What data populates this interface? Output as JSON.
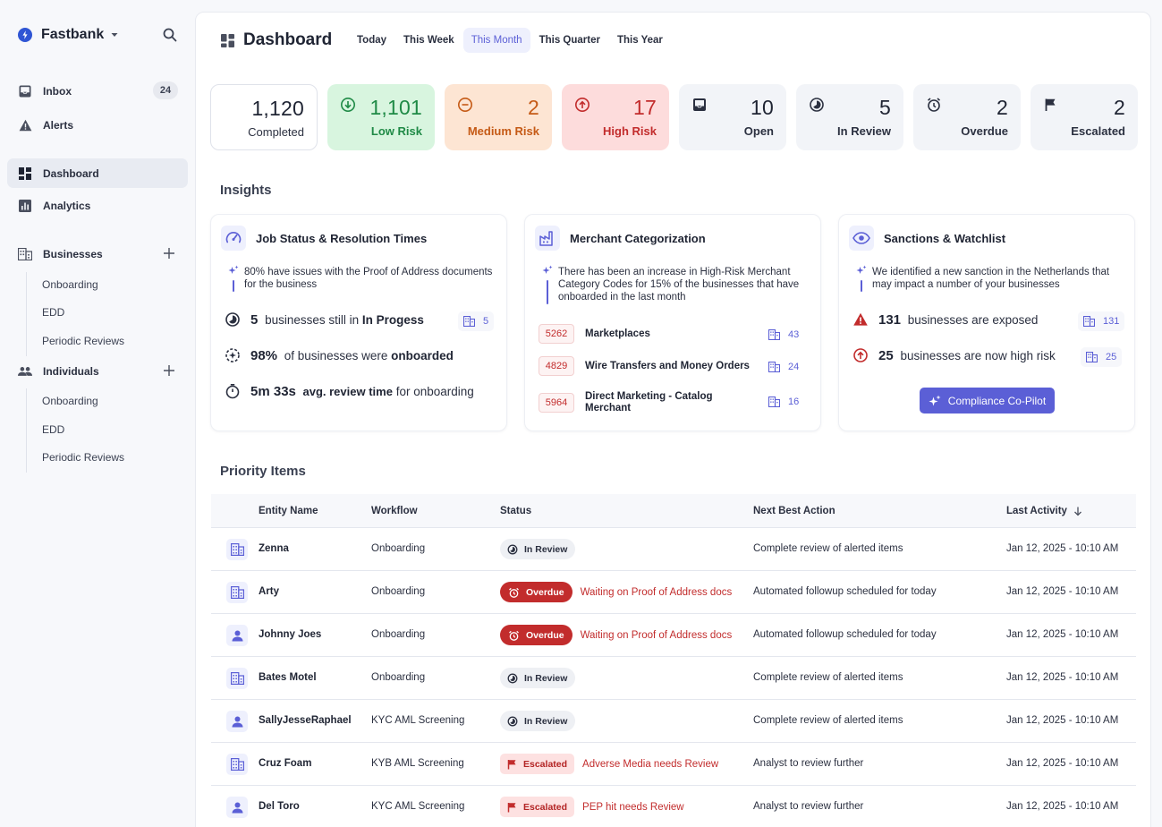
{
  "sidebar": {
    "brand": "Fastbank",
    "top_items": [
      {
        "label": "Inbox",
        "badge": "24"
      },
      {
        "label": "Alerts"
      }
    ],
    "main_items": [
      {
        "label": "Dashboard"
      },
      {
        "label": "Analytics"
      }
    ],
    "groups": [
      {
        "label": "Businesses",
        "children": [
          "Onboarding",
          "EDD",
          "Periodic Reviews"
        ]
      },
      {
        "label": "Individuals",
        "children": [
          "Onboarding",
          "EDD",
          "Periodic Reviews"
        ]
      }
    ]
  },
  "header": {
    "title": "Dashboard",
    "tabs": [
      "Today",
      "This Week",
      "This Month",
      "This Quarter",
      "This Year"
    ],
    "active_tab": "This Month"
  },
  "kpis": [
    {
      "value": "1,120",
      "label": "Completed"
    },
    {
      "value": "1,101",
      "label": "Low Risk"
    },
    {
      "value": "2",
      "label": "Medium Risk"
    },
    {
      "value": "17",
      "label": "High Risk"
    },
    {
      "value": "10",
      "label": "Open"
    },
    {
      "value": "5",
      "label": "In Review"
    },
    {
      "value": "2",
      "label": "Overdue"
    },
    {
      "value": "2",
      "label": "Escalated"
    }
  ],
  "insights": {
    "title": "Insights",
    "job_status": {
      "title": "Job Status & Resolution Times",
      "insight": "80% have issues with the Proof of Address documents for the business",
      "stat1": {
        "num": "5",
        "text": " businesses still in ",
        "bold": "In Progess",
        "count": "5"
      },
      "stat2": {
        "num": "98%",
        "text": " of businesses were ",
        "bold": "onboarded"
      },
      "stat3": {
        "num": "5m 33s",
        "bold": " avg. review time",
        "text": " for onboarding"
      }
    },
    "merchant": {
      "title": "Merchant Categorization",
      "insight": "There has been an increase in High-Risk Merchant Category Codes for 15% of the businesses that have onboarded in the last month",
      "codes": [
        {
          "code": "5262",
          "name": "Marketplaces",
          "count": "43"
        },
        {
          "code": "4829",
          "name": "Wire Transfers and Money Orders",
          "count": "24"
        },
        {
          "code": "5964",
          "name": "Direct Marketing - Catalog Merchant",
          "count": "16"
        }
      ]
    },
    "sanctions": {
      "title": "Sanctions & Watchlist",
      "insight": "We identified a new sanction in the Netherlands that may impact a number of your businesses",
      "stat1": {
        "num": "131",
        "text": " businesses are exposed",
        "count": "131"
      },
      "stat2": {
        "num": "25",
        "text": " businesses are now high risk",
        "count": "25"
      },
      "button": "Compliance Co-Pilot"
    }
  },
  "priority": {
    "title": "Priority Items",
    "columns": [
      "Entity Name",
      "Workflow",
      "Status",
      "Next Best Action",
      "Last Activity"
    ],
    "rows": [
      {
        "type": "business",
        "name": "Zenna",
        "workflow": "Onboarding",
        "status": "In Review",
        "note": "",
        "action": "Complete review of alerted items",
        "last": "Jan 12, 2025 - 10:10 AM"
      },
      {
        "type": "business",
        "name": "Arty",
        "workflow": "Onboarding",
        "status": "Overdue",
        "note": "Waiting on Proof of Address docs",
        "action": "Automated followup scheduled for today",
        "last": "Jan 12, 2025 - 10:10 AM"
      },
      {
        "type": "person",
        "name": "Johnny Joes",
        "workflow": "Onboarding",
        "status": "Overdue",
        "note": "Waiting on Proof of Address docs",
        "action": "Automated followup scheduled for today",
        "last": "Jan 12, 2025 - 10:10 AM"
      },
      {
        "type": "business",
        "name": "Bates Motel",
        "workflow": "Onboarding",
        "status": "In Review",
        "note": "",
        "action": "Complete review of alerted items",
        "last": "Jan 12, 2025 - 10:10 AM"
      },
      {
        "type": "person",
        "name": "SallyJesseRaphael",
        "workflow": "KYC AML Screening",
        "status": "In Review",
        "note": "",
        "action": "Complete review of alerted items",
        "last": "Jan 12, 2025 - 10:10 AM"
      },
      {
        "type": "business",
        "name": "Cruz Foam",
        "workflow": "KYB AML Screening",
        "status": "Escalated",
        "note": "Adverse Media needs Review",
        "action": "Analyst to review further",
        "last": "Jan 12, 2025 - 10:10 AM"
      },
      {
        "type": "person",
        "name": "Del Toro",
        "workflow": "KYC AML Screening",
        "status": "Escalated",
        "note": "PEP hit needs Review",
        "action": "Analyst to review further",
        "last": "Jan 12, 2025 - 10:10 AM"
      }
    ]
  },
  "colors": {
    "accent": "#5b5fd6",
    "low": "#1f8a46",
    "medium": "#c55a16",
    "high": "#c22c2c"
  }
}
